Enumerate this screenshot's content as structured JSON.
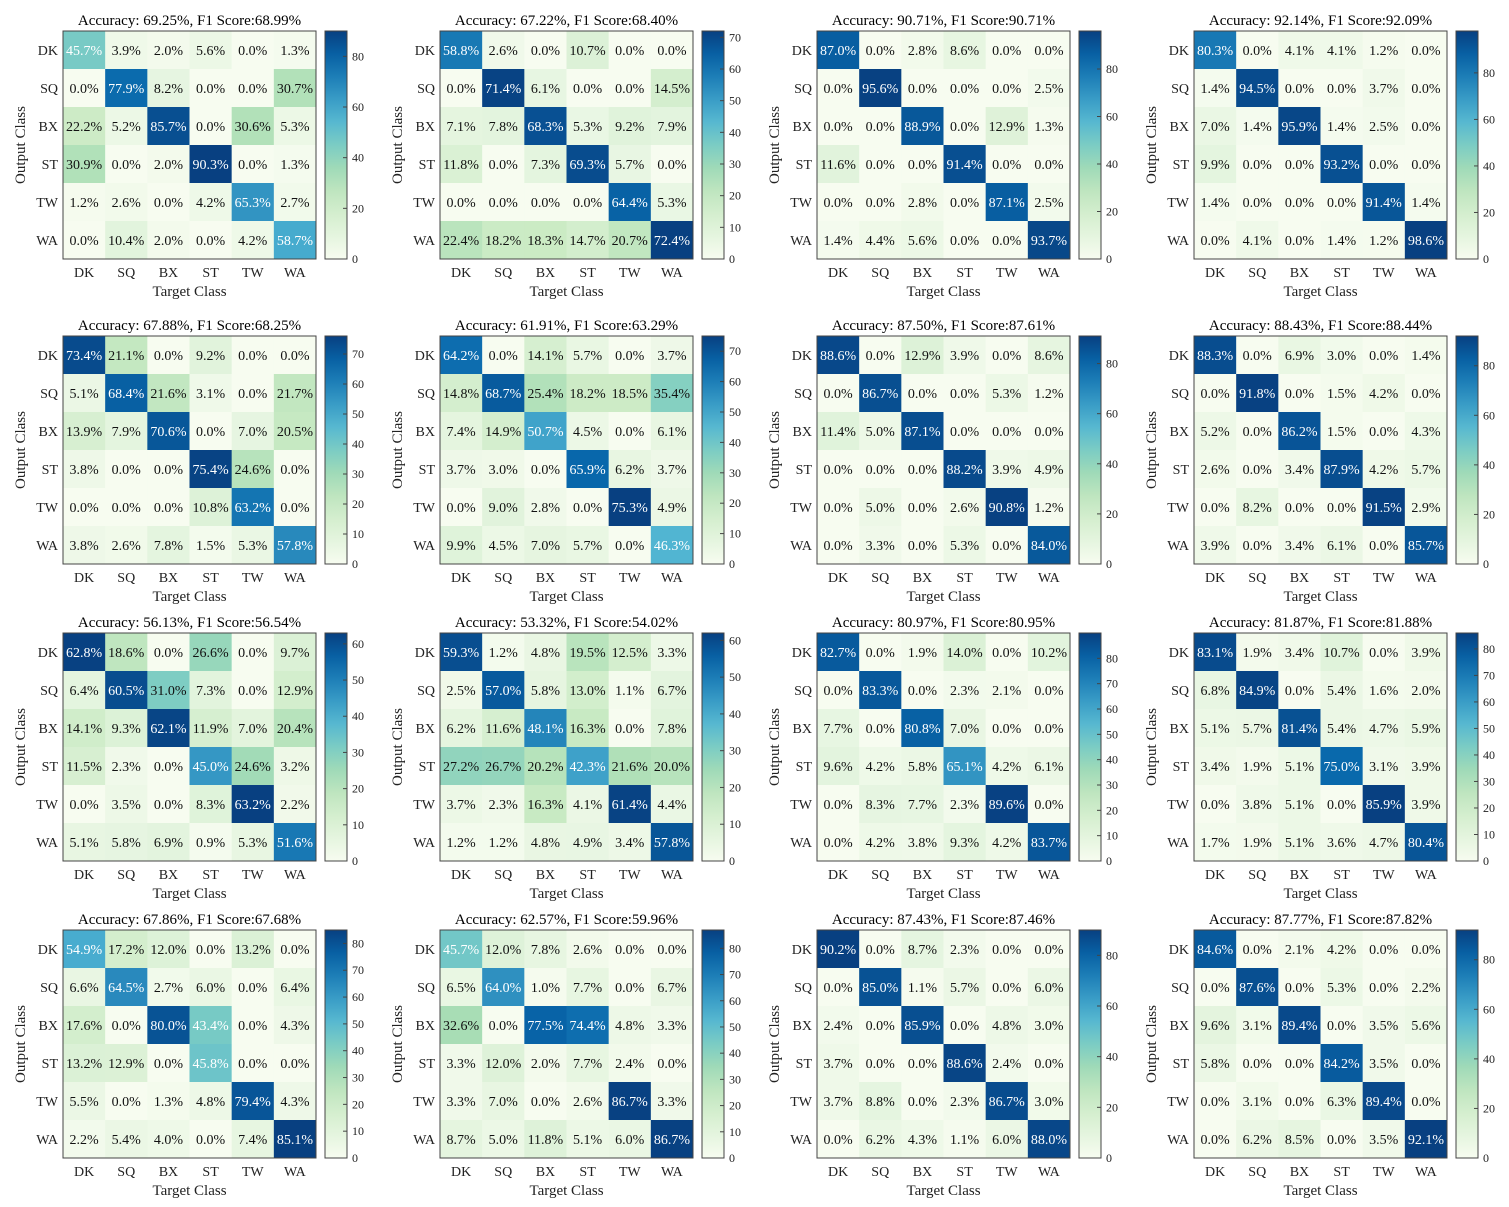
{
  "class_labels": [
    "DK",
    "SQ",
    "BX",
    "ST",
    "TW",
    "WA"
  ],
  "xlabel": "Target Class",
  "ylabel": "Output Class",
  "colormap": [
    "#f7fcf0",
    "#e0f3db",
    "#ccebc5",
    "#a8ddb5",
    "#7bccc4",
    "#4eb3d3",
    "#2b8cbe",
    "#0868ac",
    "#084081"
  ],
  "chart_data": [
    {
      "type": "heatmap",
      "title": "Accuracy: 69.25%, F1 Score:68.99%",
      "cmax": 90,
      "cbar_ticks": [
        0,
        20,
        40,
        60,
        80
      ],
      "values": [
        [
          45.7,
          3.9,
          2.0,
          5.6,
          0.0,
          1.3
        ],
        [
          0.0,
          77.9,
          8.2,
          0.0,
          0.0,
          30.7
        ],
        [
          22.2,
          5.2,
          85.7,
          0.0,
          30.6,
          5.3
        ],
        [
          30.9,
          0.0,
          2.0,
          90.3,
          0.0,
          1.3
        ],
        [
          1.2,
          2.6,
          0.0,
          4.2,
          65.3,
          2.7
        ],
        [
          0.0,
          10.4,
          2.0,
          0.0,
          4.2,
          58.7
        ]
      ]
    },
    {
      "type": "heatmap",
      "title": "Accuracy: 67.22%, F1 Score:68.40%",
      "cmax": 72,
      "cbar_ticks": [
        0,
        10,
        20,
        30,
        40,
        50,
        60,
        70
      ],
      "values": [
        [
          58.8,
          2.6,
          0.0,
          10.7,
          0.0,
          0.0
        ],
        [
          0.0,
          71.4,
          6.1,
          0.0,
          0.0,
          14.5
        ],
        [
          7.1,
          7.8,
          68.3,
          5.3,
          9.2,
          7.9
        ],
        [
          11.8,
          0.0,
          7.3,
          69.3,
          5.7,
          0.0
        ],
        [
          0.0,
          0.0,
          0.0,
          0.0,
          64.4,
          5.3
        ],
        [
          22.4,
          18.2,
          18.3,
          14.7,
          20.7,
          72.4
        ]
      ]
    },
    {
      "type": "heatmap",
      "title": "Accuracy: 90.71%, F1 Score:90.71%",
      "cmax": 96,
      "cbar_ticks": [
        0,
        20,
        40,
        60,
        80
      ],
      "values": [
        [
          87.0,
          0.0,
          2.8,
          8.6,
          0.0,
          0.0
        ],
        [
          0.0,
          95.6,
          0.0,
          0.0,
          0.0,
          2.5
        ],
        [
          0.0,
          0.0,
          88.9,
          0.0,
          12.9,
          1.3
        ],
        [
          11.6,
          0.0,
          0.0,
          91.4,
          0.0,
          0.0
        ],
        [
          0.0,
          0.0,
          2.8,
          0.0,
          87.1,
          2.5
        ],
        [
          1.4,
          4.4,
          5.6,
          0.0,
          0.0,
          93.7
        ]
      ]
    },
    {
      "type": "heatmap",
      "title": "Accuracy: 92.14%, F1 Score:92.09%",
      "cmax": 98,
      "cbar_ticks": [
        0,
        20,
        40,
        60,
        80
      ],
      "values": [
        [
          80.3,
          0.0,
          4.1,
          4.1,
          1.2,
          0.0
        ],
        [
          1.4,
          94.5,
          0.0,
          0.0,
          3.7,
          0.0
        ],
        [
          7.0,
          1.4,
          95.9,
          1.4,
          2.5,
          0.0
        ],
        [
          9.9,
          0.0,
          0.0,
          93.2,
          0.0,
          0.0
        ],
        [
          1.4,
          0.0,
          0.0,
          0.0,
          91.4,
          1.4
        ],
        [
          0.0,
          4.1,
          0.0,
          1.4,
          1.2,
          98.6
        ]
      ]
    },
    {
      "type": "heatmap",
      "title": "Accuracy: 67.88%, F1 Score:68.25%",
      "cmax": 76,
      "cbar_ticks": [
        0,
        10,
        20,
        30,
        40,
        50,
        60,
        70
      ],
      "values": [
        [
          73.4,
          21.1,
          0.0,
          9.2,
          0.0,
          0.0
        ],
        [
          5.1,
          68.4,
          21.6,
          3.1,
          0.0,
          21.7
        ],
        [
          13.9,
          7.9,
          70.6,
          0.0,
          7.0,
          20.5
        ],
        [
          3.8,
          0.0,
          0.0,
          75.4,
          24.6,
          0.0
        ],
        [
          0.0,
          0.0,
          0.0,
          10.8,
          63.2,
          0.0
        ],
        [
          3.8,
          2.6,
          7.8,
          1.5,
          5.3,
          57.8
        ]
      ]
    },
    {
      "type": "heatmap",
      "title": "Accuracy: 61.91%, F1 Score:63.29%",
      "cmax": 75,
      "cbar_ticks": [
        0,
        10,
        20,
        30,
        40,
        50,
        60,
        70
      ],
      "values": [
        [
          64.2,
          0.0,
          14.1,
          5.7,
          0.0,
          3.7
        ],
        [
          14.8,
          68.7,
          25.4,
          18.2,
          18.5,
          35.4
        ],
        [
          7.4,
          14.9,
          50.7,
          4.5,
          0.0,
          6.1
        ],
        [
          3.7,
          3.0,
          0.0,
          65.9,
          6.2,
          3.7
        ],
        [
          0.0,
          9.0,
          2.8,
          0.0,
          75.3,
          4.9
        ],
        [
          9.9,
          4.5,
          7.0,
          5.7,
          0.0,
          46.3
        ]
      ]
    },
    {
      "type": "heatmap",
      "title": "Accuracy: 87.50%, F1 Score:87.61%",
      "cmax": 91,
      "cbar_ticks": [
        0,
        20,
        40,
        60,
        80
      ],
      "values": [
        [
          88.6,
          0.0,
          12.9,
          3.9,
          0.0,
          8.6
        ],
        [
          0.0,
          86.7,
          0.0,
          0.0,
          5.3,
          1.2
        ],
        [
          11.4,
          5.0,
          87.1,
          0.0,
          0.0,
          0.0
        ],
        [
          0.0,
          0.0,
          0.0,
          88.2,
          3.9,
          4.9
        ],
        [
          0.0,
          5.0,
          0.0,
          2.6,
          90.8,
          1.2
        ],
        [
          0.0,
          3.3,
          0.0,
          5.3,
          0.0,
          84.0
        ]
      ]
    },
    {
      "type": "heatmap",
      "title": "Accuracy: 88.43%, F1 Score:88.44%",
      "cmax": 92,
      "cbar_ticks": [
        0,
        20,
        40,
        60,
        80
      ],
      "values": [
        [
          88.3,
          0.0,
          6.9,
          3.0,
          0.0,
          1.4
        ],
        [
          0.0,
          91.8,
          0.0,
          1.5,
          4.2,
          0.0
        ],
        [
          5.2,
          0.0,
          86.2,
          1.5,
          0.0,
          4.3
        ],
        [
          2.6,
          0.0,
          3.4,
          87.9,
          4.2,
          5.7
        ],
        [
          0.0,
          8.2,
          0.0,
          0.0,
          91.5,
          2.9
        ],
        [
          3.9,
          0.0,
          3.4,
          6.1,
          0.0,
          85.7
        ]
      ]
    },
    {
      "type": "heatmap",
      "title": "Accuracy: 56.13%, F1 Score:56.54%",
      "cmax": 63,
      "cbar_ticks": [
        0,
        10,
        20,
        30,
        40,
        50,
        60
      ],
      "values": [
        [
          62.8,
          18.6,
          0.0,
          26.6,
          0.0,
          9.7
        ],
        [
          6.4,
          60.5,
          31.0,
          7.3,
          0.0,
          12.9
        ],
        [
          14.1,
          9.3,
          62.1,
          11.9,
          7.0,
          20.4
        ],
        [
          11.5,
          2.3,
          0.0,
          45.0,
          24.6,
          3.2
        ],
        [
          0.0,
          3.5,
          0.0,
          8.3,
          63.2,
          2.2
        ],
        [
          5.1,
          5.8,
          6.9,
          0.9,
          5.3,
          51.6
        ]
      ]
    },
    {
      "type": "heatmap",
      "title": "Accuracy: 53.32%, F1 Score:54.02%",
      "cmax": 62,
      "cbar_ticks": [
        0,
        10,
        20,
        30,
        40,
        50,
        60
      ],
      "values": [
        [
          59.3,
          1.2,
          4.8,
          19.5,
          12.5,
          3.3
        ],
        [
          2.5,
          57.0,
          5.8,
          13.0,
          1.1,
          6.7
        ],
        [
          6.2,
          11.6,
          48.1,
          16.3,
          0.0,
          7.8
        ],
        [
          27.2,
          26.7,
          20.2,
          42.3,
          21.6,
          20.0
        ],
        [
          3.7,
          2.3,
          16.3,
          4.1,
          61.4,
          4.4
        ],
        [
          1.2,
          1.2,
          4.8,
          4.9,
          3.4,
          57.8
        ]
      ]
    },
    {
      "type": "heatmap",
      "title": "Accuracy: 80.97%, F1 Score:80.95%",
      "cmax": 90,
      "cbar_ticks": [
        0,
        10,
        20,
        30,
        40,
        50,
        60,
        70,
        80
      ],
      "values": [
        [
          82.7,
          0.0,
          1.9,
          14.0,
          0.0,
          10.2
        ],
        [
          0.0,
          83.3,
          0.0,
          2.3,
          2.1,
          0.0
        ],
        [
          7.7,
          0.0,
          80.8,
          7.0,
          0.0,
          0.0
        ],
        [
          9.6,
          4.2,
          5.8,
          65.1,
          4.2,
          6.1
        ],
        [
          0.0,
          8.3,
          7.7,
          2.3,
          89.6,
          0.0
        ],
        [
          0.0,
          4.2,
          3.8,
          9.3,
          4.2,
          83.7
        ]
      ]
    },
    {
      "type": "heatmap",
      "title": "Accuracy: 81.87%, F1 Score:81.88%",
      "cmax": 86,
      "cbar_ticks": [
        0,
        10,
        20,
        30,
        40,
        50,
        60,
        70,
        80
      ],
      "values": [
        [
          83.1,
          1.9,
          3.4,
          10.7,
          0.0,
          3.9
        ],
        [
          6.8,
          84.9,
          0.0,
          5.4,
          1.6,
          2.0
        ],
        [
          5.1,
          5.7,
          81.4,
          5.4,
          4.7,
          5.9
        ],
        [
          3.4,
          1.9,
          5.1,
          75.0,
          3.1,
          3.9
        ],
        [
          0.0,
          3.8,
          5.1,
          0.0,
          85.9,
          3.9
        ],
        [
          1.7,
          1.9,
          5.1,
          3.6,
          4.7,
          80.4
        ]
      ]
    },
    {
      "type": "heatmap",
      "title": "Accuracy: 67.86%, F1 Score:67.68%",
      "cmax": 85,
      "cbar_ticks": [
        0,
        10,
        20,
        30,
        40,
        50,
        60,
        70,
        80
      ],
      "values": [
        [
          54.9,
          17.2,
          12.0,
          0.0,
          13.2,
          0.0
        ],
        [
          6.6,
          64.5,
          2.7,
          6.0,
          0.0,
          6.4
        ],
        [
          17.6,
          0.0,
          80.0,
          43.4,
          0.0,
          4.3
        ],
        [
          13.2,
          12.9,
          0.0,
          45.8,
          0.0,
          0.0
        ],
        [
          5.5,
          0.0,
          1.3,
          4.8,
          79.4,
          4.3
        ],
        [
          2.2,
          5.4,
          4.0,
          0.0,
          7.4,
          85.1
        ]
      ]
    },
    {
      "type": "heatmap",
      "title": "Accuracy: 62.57%, F1 Score:59.96%",
      "cmax": 87,
      "cbar_ticks": [
        0,
        10,
        20,
        30,
        40,
        50,
        60,
        70,
        80
      ],
      "values": [
        [
          45.7,
          12.0,
          7.8,
          2.6,
          0.0,
          0.0
        ],
        [
          6.5,
          64.0,
          1.0,
          7.7,
          0.0,
          6.7
        ],
        [
          32.6,
          0.0,
          77.5,
          74.4,
          4.8,
          3.3
        ],
        [
          3.3,
          12.0,
          2.0,
          7.7,
          2.4,
          0.0
        ],
        [
          3.3,
          7.0,
          0.0,
          2.6,
          86.7,
          3.3
        ],
        [
          8.7,
          5.0,
          11.8,
          5.1,
          6.0,
          86.7
        ]
      ]
    },
    {
      "type": "heatmap",
      "title": "Accuracy: 87.43%, F1 Score:87.46%",
      "cmax": 90,
      "cbar_ticks": [
        0,
        20,
        40,
        60,
        80
      ],
      "values": [
        [
          90.2,
          0.0,
          8.7,
          2.3,
          0.0,
          0.0
        ],
        [
          0.0,
          85.0,
          1.1,
          5.7,
          0.0,
          6.0
        ],
        [
          2.4,
          0.0,
          85.9,
          0.0,
          4.8,
          3.0
        ],
        [
          3.7,
          0.0,
          0.0,
          88.6,
          2.4,
          0.0
        ],
        [
          3.7,
          8.8,
          0.0,
          2.3,
          86.7,
          3.0
        ],
        [
          0.0,
          6.2,
          4.3,
          1.1,
          6.0,
          88.0
        ]
      ]
    },
    {
      "type": "heatmap",
      "title": "Accuracy: 87.77%, F1 Score:87.82%",
      "cmax": 92,
      "cbar_ticks": [
        0,
        20,
        40,
        60,
        80
      ],
      "values": [
        [
          84.6,
          0.0,
          2.1,
          4.2,
          0.0,
          0.0
        ],
        [
          0.0,
          87.6,
          0.0,
          5.3,
          0.0,
          2.2
        ],
        [
          9.6,
          3.1,
          89.4,
          0.0,
          3.5,
          5.6
        ],
        [
          5.8,
          0.0,
          0.0,
          84.2,
          3.5,
          0.0
        ],
        [
          0.0,
          3.1,
          0.0,
          6.3,
          89.4,
          0.0
        ],
        [
          0.0,
          6.2,
          8.5,
          0.0,
          3.5,
          92.1
        ]
      ]
    }
  ]
}
